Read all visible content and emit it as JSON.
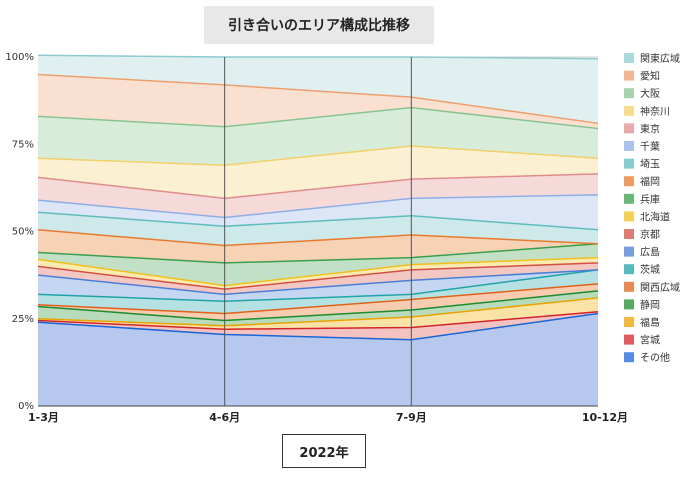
{
  "chart_data": {
    "type": "area",
    "title": "引き合いのエリア構成比推移",
    "xlabel": "2022年",
    "ylabel": "",
    "categories": [
      "1-3月",
      "4-6月",
      "7-9月",
      "10-12月"
    ],
    "ylim": [
      0,
      100
    ],
    "yticks": [
      "0%",
      "25%",
      "50%",
      "75%",
      "100%"
    ],
    "stacked": true,
    "legend_position": "right",
    "series": [
      {
        "name": "その他",
        "color": "#1a66d6",
        "fill": "#b7c8ee",
        "values": [
          24,
          20.5,
          19,
          26.5
        ]
      },
      {
        "name": "宮城",
        "color": "#d3262a",
        "fill": "#f4c3c1",
        "values": [
          0.5,
          1.5,
          3.5,
          0.5
        ]
      },
      {
        "name": "福島",
        "color": "#e8a400",
        "fill": "#fbe3a8",
        "values": [
          0.5,
          1.0,
          3.0,
          4.0
        ]
      },
      {
        "name": "静岡",
        "color": "#1c8c2e",
        "fill": "#b8dcbb",
        "values": [
          3.5,
          1.5,
          2.0,
          2.0
        ]
      },
      {
        "name": "関西広域",
        "color": "#e0621a",
        "fill": "#f7ccb1",
        "values": [
          0.5,
          2.0,
          3.0,
          2.0
        ]
      },
      {
        "name": "茨城",
        "color": "#1fa3a8",
        "fill": "#b6e1e2",
        "values": [
          3.0,
          3.5,
          1.5,
          4.0
        ]
      },
      {
        "name": "広島",
        "color": "#4a7fd8",
        "fill": "#c5d6f2",
        "values": [
          5.5,
          2.0,
          4.0,
          0
        ]
      },
      {
        "name": "京都",
        "color": "#d25045",
        "fill": "#f3c8c2",
        "values": [
          2.5,
          1.5,
          3.0,
          2.0
        ]
      },
      {
        "name": "北海道",
        "color": "#f0c020",
        "fill": "#fbebb0",
        "values": [
          2.0,
          1.0,
          1.5,
          1.5
        ]
      },
      {
        "name": "兵庫",
        "color": "#3a9e4c",
        "fill": "#c1e0c5",
        "values": [
          2.0,
          6.5,
          2.0,
          4.0
        ]
      },
      {
        "name": "福岡",
        "color": "#e87a30",
        "fill": "#f7d2b5",
        "values": [
          6.5,
          5.0,
          6.5,
          0
        ]
      },
      {
        "name": "埼玉",
        "color": "#5fbcbc",
        "fill": "#cde9e9",
        "values": [
          5.0,
          5.5,
          5.5,
          4.0
        ]
      },
      {
        "name": "千葉",
        "color": "#8eaee6",
        "fill": "#dde6f7",
        "values": [
          3.5,
          2.5,
          5.0,
          10.0
        ]
      },
      {
        "name": "東京",
        "color": "#e08c8c",
        "fill": "#f6dada",
        "values": [
          6.5,
          5.5,
          5.5,
          6.0
        ]
      },
      {
        "name": "神奈川",
        "color": "#f2d06a",
        "fill": "#fbf1d2",
        "values": [
          5.5,
          9.5,
          9.5,
          4.5
        ]
      },
      {
        "name": "大阪",
        "color": "#88c492",
        "fill": "#d8ecda",
        "values": [
          12,
          11,
          11,
          8.5
        ]
      },
      {
        "name": "愛知",
        "color": "#eea070",
        "fill": "#f9e0d0",
        "values": [
          12,
          12,
          3.0,
          1.5
        ]
      },
      {
        "name": "関東広域",
        "color": "#8ecbcf",
        "fill": "#e0f0f1",
        "values": [
          5.5,
          8.0,
          11.5,
          18.5
        ]
      }
    ]
  }
}
